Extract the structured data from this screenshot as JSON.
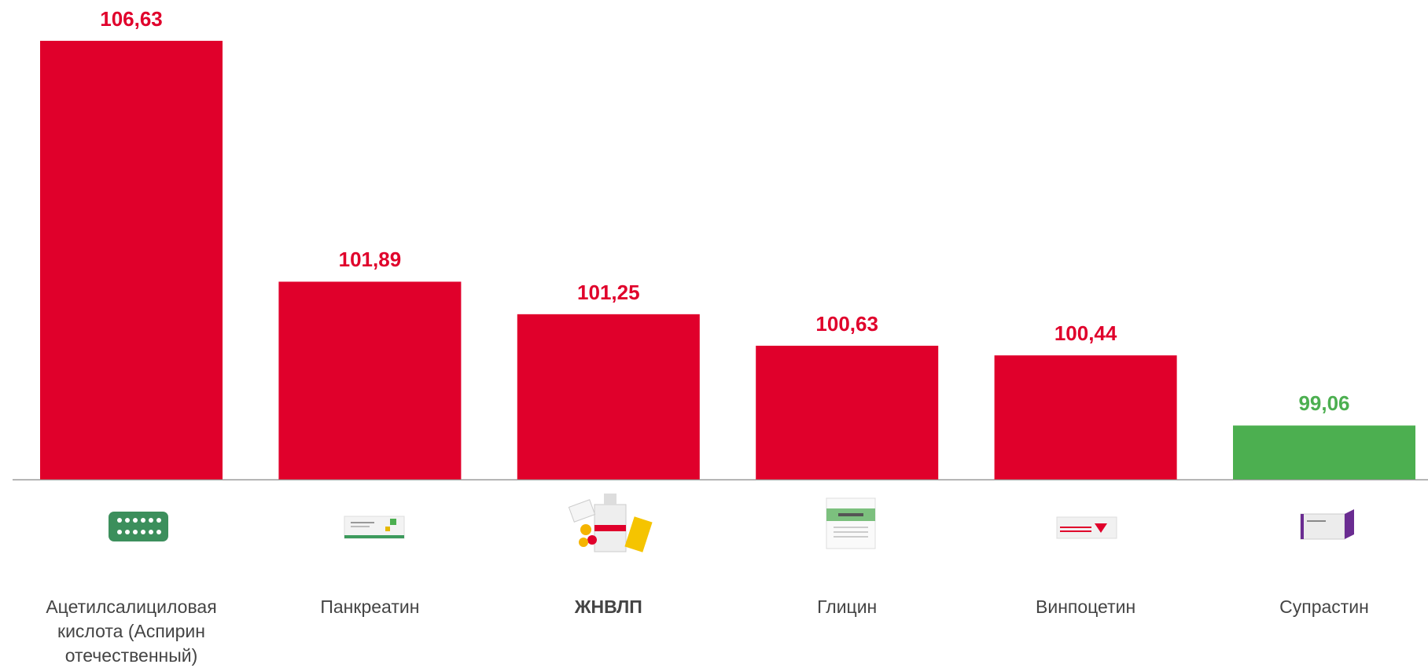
{
  "chart_data": {
    "type": "bar",
    "categories": [
      "Ацетилсалициловая кислота (Аспирин отечественный)",
      "Панкреатин",
      "ЖНВЛП",
      "Глицин",
      "Винпоцетин",
      "Супрастин"
    ],
    "values": [
      106.63,
      101.89,
      101.25,
      100.63,
      100.44,
      99.06
    ],
    "value_labels": [
      "106,63",
      "101,89",
      "101,25",
      "100,63",
      "100,44",
      "99,06"
    ],
    "colors": [
      "#e0002b",
      "#e0002b",
      "#e0002b",
      "#e0002b",
      "#e0002b",
      "#4caf50"
    ],
    "ylim": [
      98,
      107
    ]
  }
}
